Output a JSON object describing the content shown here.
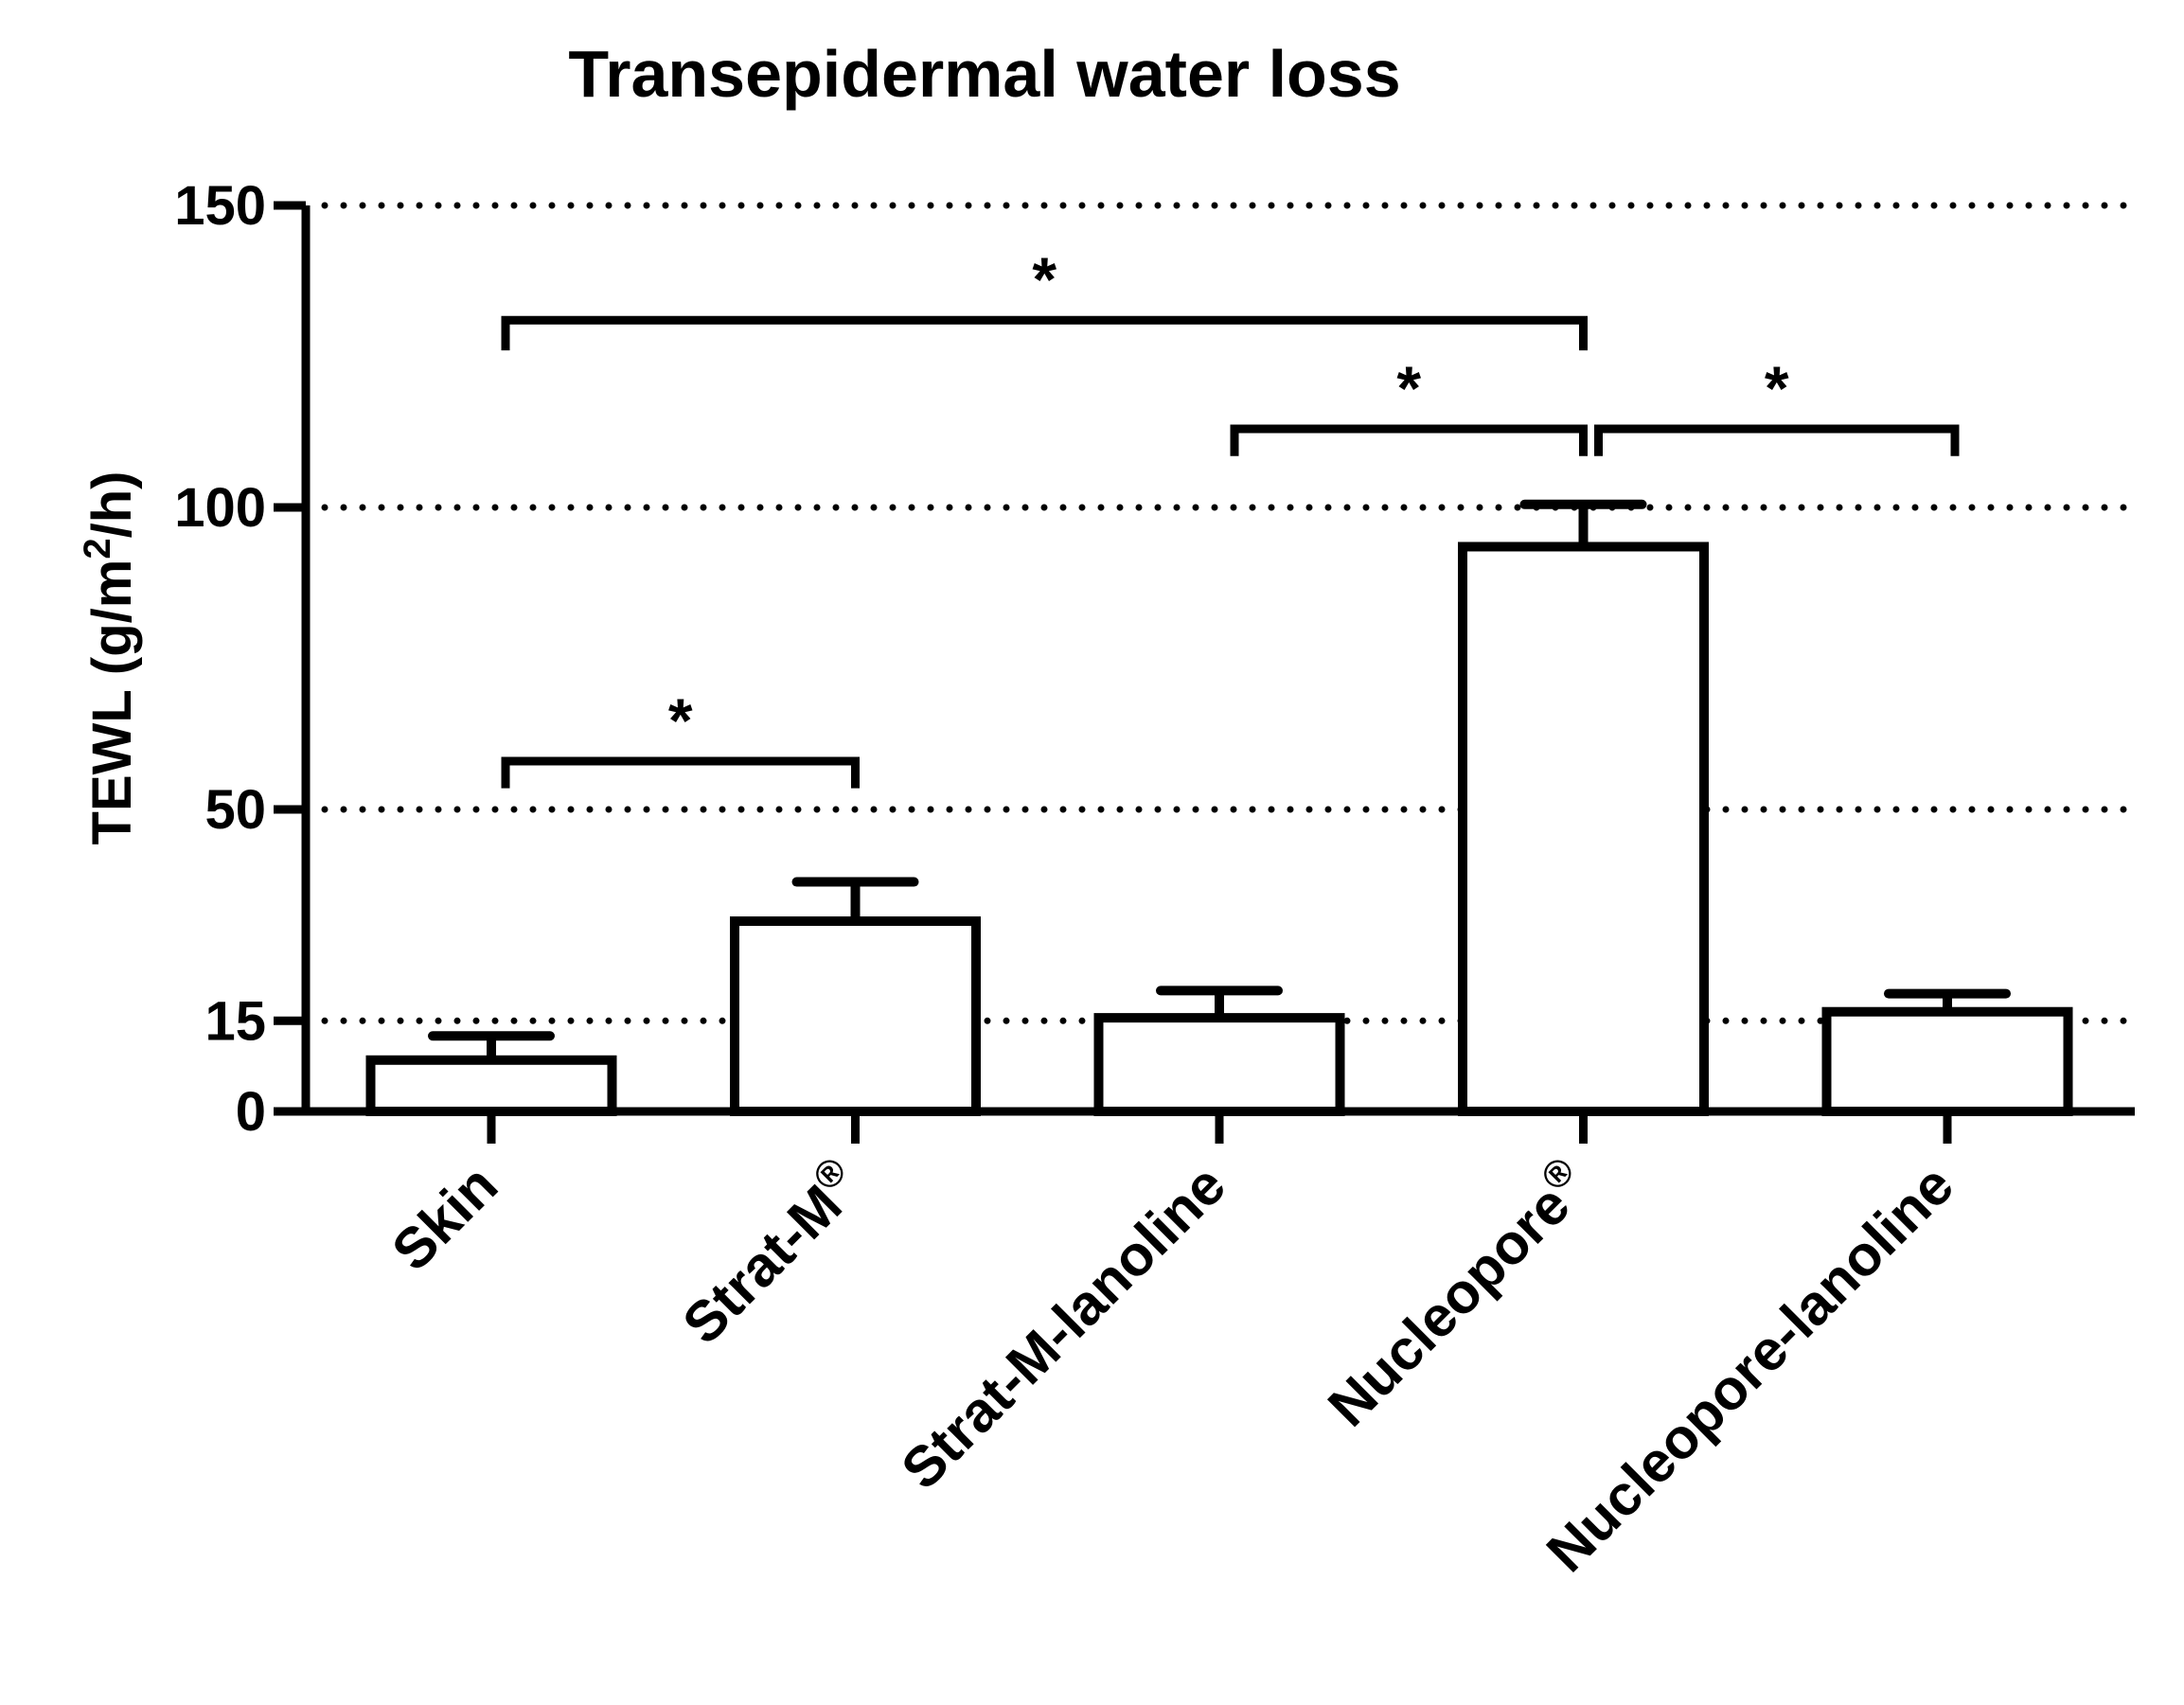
{
  "chart_data": {
    "type": "bar",
    "title": "Transepidermal water loss",
    "xlabel": "",
    "ylabel": "TEWL (g/m2/h)",
    "ylabel_parts": {
      "before": "TEWL (g/m",
      "superscript": "2",
      "after": "/h)"
    },
    "ylim": [
      0,
      150
    ],
    "yticks": [
      0,
      15,
      50,
      100,
      150
    ],
    "gridlines": {
      "style": "dotted",
      "at": [
        15,
        50,
        100,
        150
      ]
    },
    "categories": [
      {
        "text": "Skin",
        "mark": ""
      },
      {
        "text": "Strat-M",
        "mark": "®"
      },
      {
        "text": "Strat-M-lanoline",
        "mark": ""
      },
      {
        "text": "Nucleopore",
        "mark": "®"
      },
      {
        "text": "Nucleopore-lanoline",
        "mark": ""
      }
    ],
    "values": [
      8.5,
      31.5,
      15.5,
      93.5,
      16.5
    ],
    "error_upper": [
      12.5,
      38,
      20,
      100.5,
      19.5
    ],
    "significance": [
      {
        "from": 0,
        "to": 3,
        "label": "*",
        "y": 131,
        "left_drop": 126,
        "right_drop": 126
      },
      {
        "from": 2,
        "to": 3,
        "label": "*",
        "y": 113,
        "left_drop": 108.5,
        "right_drop": 108.5
      },
      {
        "from": 3,
        "to": 4,
        "label": "*",
        "y": 113,
        "left_drop": 108.5,
        "right_drop": 108.5
      },
      {
        "from": 0,
        "to": 1,
        "label": "*",
        "y": 58,
        "left_drop": 53.5,
        "right_drop": 53.5
      }
    ]
  }
}
